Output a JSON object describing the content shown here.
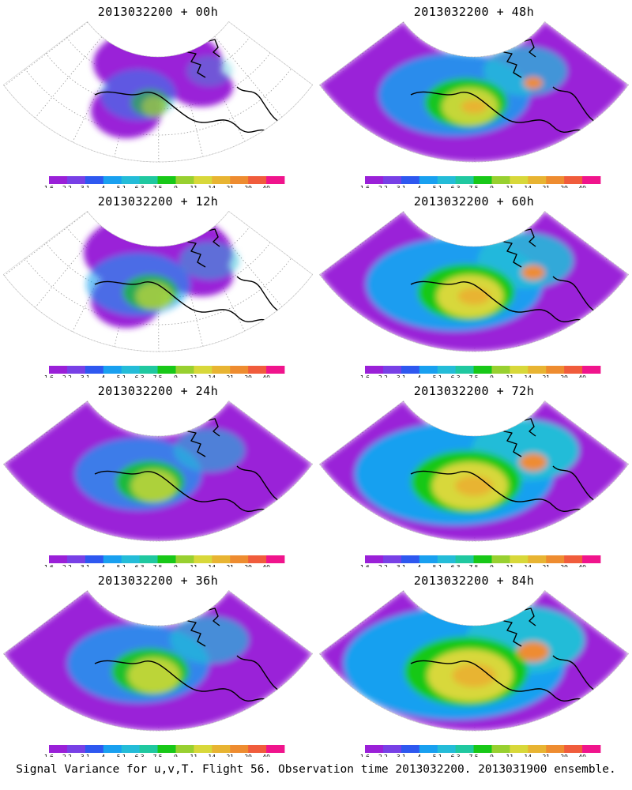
{
  "panels": [
    {
      "title": "2013032200 + 00h"
    },
    {
      "title": "2013032200 + 48h"
    },
    {
      "title": "2013032200 + 12h"
    },
    {
      "title": "2013032200 + 60h"
    },
    {
      "title": "2013032200 + 24h"
    },
    {
      "title": "2013032200 + 72h"
    },
    {
      "title": "2013032200 + 36h"
    },
    {
      "title": "2013032200 + 84h"
    }
  ],
  "colorbar": {
    "labels": [
      "1.6",
      "2.2",
      "3.1",
      "4",
      "5.1",
      "6.3",
      "7.5",
      "9",
      "11",
      "14",
      "21",
      "29",
      "40"
    ],
    "colors": [
      "#9a20d8",
      "#7840e6",
      "#2e58f0",
      "#19a0f0",
      "#24bcd8",
      "#20c8a0",
      "#18c818",
      "#98d030",
      "#d8d83a",
      "#e8b432",
      "#ee8c30",
      "#f05c3c",
      "#f0148c"
    ]
  },
  "caption": "Signal Variance for u,v,T. Flight 56. Observation time 2013032200. 2013031900 ensemble."
}
